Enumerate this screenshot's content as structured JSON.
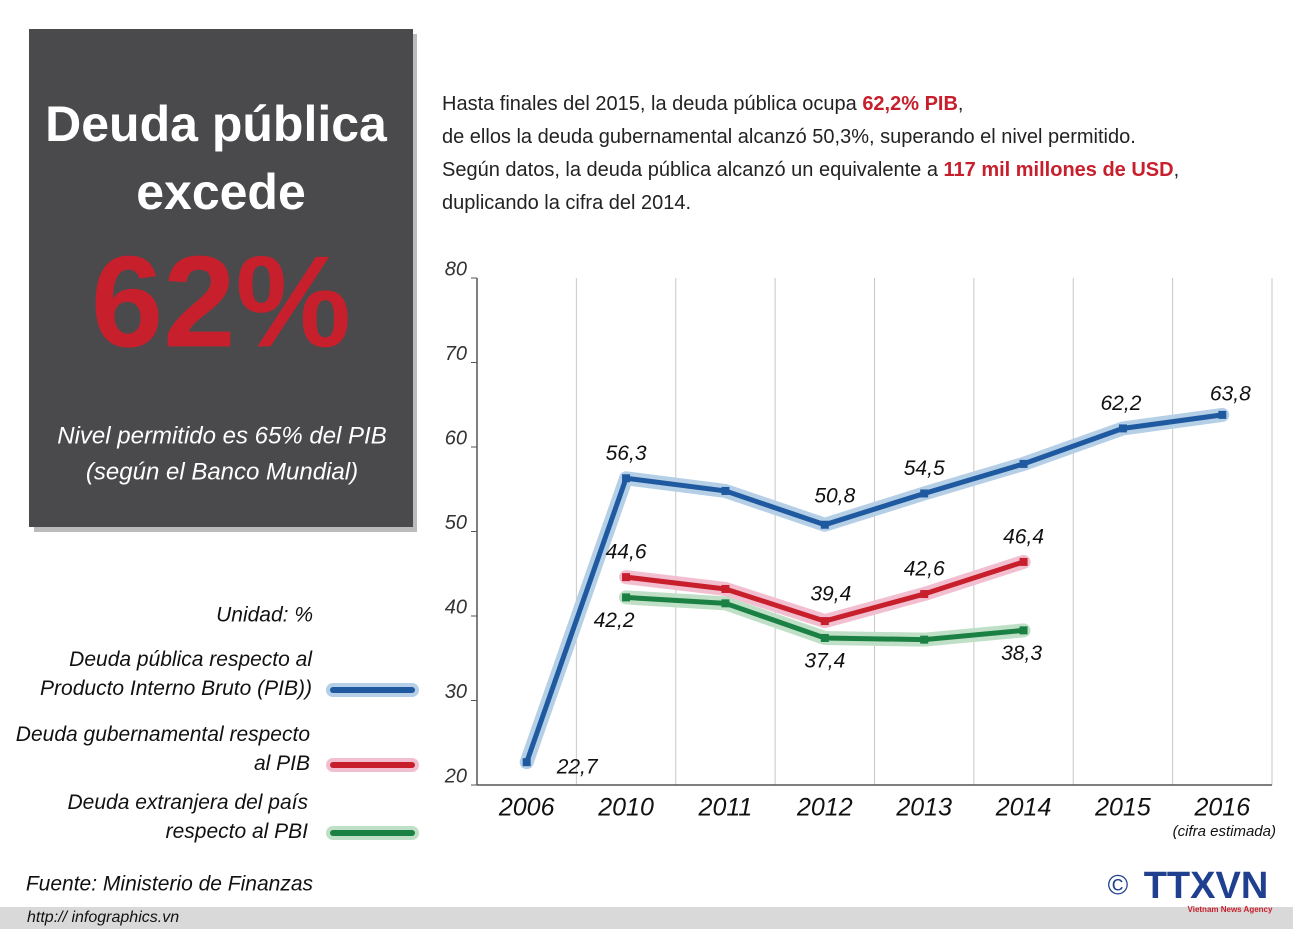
{
  "header": {
    "title_lines": [
      "Deuda pública",
      "excede"
    ],
    "big_number": "62%",
    "subtitle_lines": [
      "Nivel permitido es 65% del PIB",
      "(según el Banco Mundial)"
    ]
  },
  "intro": [
    {
      "before": "Hasta finales del 2015, la deuda pública ocupa ",
      "highlight": "62,2% PIB",
      "after": ","
    },
    {
      "before": "de ellos la deuda gubernamental alcanzó 50,3%, superando el nivel permitido."
    },
    {
      "before": "Según datos, la deuda pública alcanzó un equivalente a ",
      "highlight": "117 mil millones de USD",
      "after": ","
    },
    {
      "before": "duplicando la cifra del 2014."
    }
  ],
  "chart_data": {
    "type": "line",
    "unit_label": "Unidad: %",
    "categories": [
      "2006",
      "2010",
      "2011",
      "2012",
      "2013",
      "2014",
      "2015",
      "2016"
    ],
    "x_note": "(cifra estimada)",
    "ylim": [
      20,
      80
    ],
    "yticks": [
      20,
      30,
      40,
      50,
      60,
      70,
      80
    ],
    "grid": true,
    "series": [
      {
        "name": "Deuda pública  respecto al Producto Interno Bruto (PIB))",
        "color": "#1f5aa0",
        "glow": "#b4cfe6",
        "values": [
          22.7,
          56.3,
          54.8,
          50.8,
          54.5,
          58.0,
          62.2,
          63.8
        ],
        "value_labels": [
          "22,7",
          "56,3",
          null,
          "50,8",
          "54,5",
          null,
          "62,2",
          "63,8"
        ]
      },
      {
        "name": "Deuda gubernamental respecto al PIB",
        "color": "#c81f2c",
        "glow": "#f2bfd0",
        "values": [
          null,
          44.6,
          43.2,
          39.4,
          42.6,
          46.4,
          null,
          null
        ],
        "value_labels": [
          null,
          "44,6",
          null,
          "39,4",
          "42,6",
          "46,4",
          null,
          null
        ]
      },
      {
        "name": "Deuda extranjera del país respecto al PBI",
        "color": "#1b8043",
        "glow": "#bfe0c6",
        "values": [
          null,
          42.2,
          41.5,
          37.4,
          37.2,
          38.3,
          null,
          null
        ],
        "value_labels": [
          null,
          "42,2",
          null,
          "37,4",
          null,
          "38,3",
          null,
          null
        ]
      }
    ]
  },
  "footer": {
    "source": "Fuente: Ministerio de Finanzas",
    "url": "http:// infographics.vn",
    "copyright": "©",
    "logo": "TTXVN",
    "agency": "Vietnam News Agency"
  }
}
